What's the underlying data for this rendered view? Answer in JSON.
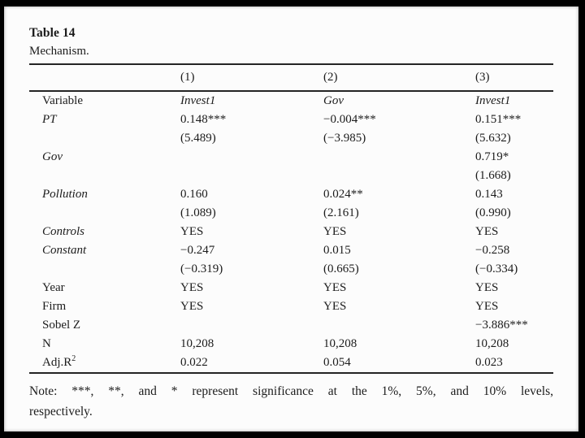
{
  "colors": {
    "frame": "#000000",
    "page_bg": "#fcfcfc",
    "text": "#1c1c1c",
    "rule": "#242424"
  },
  "table": {
    "title": "Table 14",
    "subtitle": "Mechanism.",
    "col_headers": [
      "(1)",
      "(2)",
      "(3)"
    ],
    "rows": [
      {
        "label": "Variable",
        "cells": [
          "Invest1",
          "Gov",
          "Invest1"
        ]
      },
      {
        "label": "PT",
        "cells": [
          "0.148***",
          "−0.004***",
          "0.151***"
        ]
      },
      {
        "label": "",
        "cells": [
          "(5.489)",
          "(−3.985)",
          "(5.632)"
        ]
      },
      {
        "label": "Gov",
        "cells": [
          "",
          "",
          "0.719*"
        ]
      },
      {
        "label": "",
        "cells": [
          "",
          "",
          "(1.668)"
        ]
      },
      {
        "label": "Pollution",
        "cells": [
          "0.160",
          "0.024**",
          "0.143"
        ]
      },
      {
        "label": "",
        "cells": [
          "(1.089)",
          "(2.161)",
          "(0.990)"
        ]
      },
      {
        "label": "Controls",
        "cells": [
          "YES",
          "YES",
          "YES"
        ]
      },
      {
        "label": "Constant",
        "cells": [
          "−0.247",
          "0.015",
          "−0.258"
        ]
      },
      {
        "label": "",
        "cells": [
          "(−0.319)",
          "(0.665)",
          "(−0.334)"
        ]
      },
      {
        "label": "Year",
        "cells": [
          "YES",
          "YES",
          "YES"
        ]
      },
      {
        "label": "Firm",
        "cells": [
          "YES",
          "YES",
          "YES"
        ]
      },
      {
        "label": "Sobel Z",
        "cells": [
          "",
          "",
          "−3.886***"
        ]
      },
      {
        "label": "N",
        "cells": [
          "10,208",
          "10,208",
          "10,208"
        ]
      },
      {
        "label": "Adj.R",
        "label_sup": "2",
        "cells": [
          "0.022",
          "0.054",
          "0.023"
        ]
      }
    ],
    "note_lines": [
      "Note: ***, **, and * represent significance at the 1%, 5%, and 10% levels,",
      "respectively."
    ]
  }
}
